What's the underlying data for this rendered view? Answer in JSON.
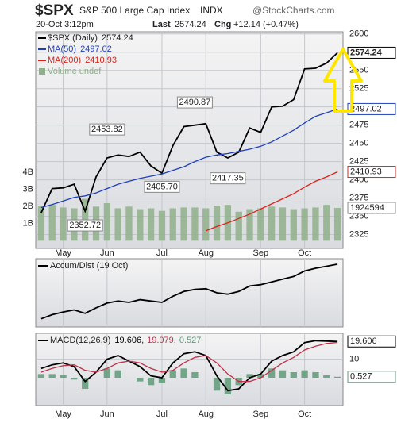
{
  "header": {
    "symbol": "$SPX",
    "name": "S&P 500 Large Cap Index",
    "exchange": "INDX",
    "source": "@StockCharts.com",
    "datetime": "20-Oct 3:12pm",
    "last_label": "Last",
    "last": 2574.24,
    "chg_label": "Chg",
    "chg": "+12.14 (+0.47%)"
  },
  "chart_data": [
    {
      "type": "line",
      "categories": [
        null,
        null,
        "May",
        null,
        null,
        null,
        "Jun",
        null,
        null,
        null,
        null,
        "Jul",
        null,
        null,
        null,
        "Aug",
        null,
        null,
        null,
        null,
        "Sep",
        null,
        null,
        null,
        "Oct",
        null,
        null,
        null
      ],
      "series": [
        {
          "name": "$SPX (Daily)",
          "color": "#000000",
          "tag": true,
          "values": [
            2355,
            2388,
            2389,
            2394,
            2357,
            2404,
            2430,
            2434,
            2432,
            2438,
            2419,
            2409,
            2447,
            2473,
            2475,
            2477,
            2438,
            2430,
            2438,
            2471,
            2465,
            2500,
            2501,
            2510,
            2552,
            2553,
            2560,
            2574.24
          ]
        },
        {
          "name": "MA(50)",
          "color": "#1f3fbf",
          "tag": true,
          "values": [
            2362,
            2366,
            2371,
            2376,
            2378,
            2382,
            2388,
            2394,
            2398,
            2402,
            2405,
            2408,
            2413,
            2418,
            2425,
            2431,
            2434,
            2436,
            2439,
            2442,
            2446,
            2452,
            2460,
            2468,
            2478,
            2487,
            2492,
            2497.02
          ]
        },
        {
          "name": "MA(200)",
          "color": "#e0201b",
          "tag": true,
          "values": [
            null,
            null,
            null,
            null,
            null,
            null,
            null,
            null,
            null,
            null,
            null,
            null,
            null,
            null,
            null,
            2330,
            2336,
            2341,
            2347,
            2353,
            2360,
            2367,
            2374,
            2381,
            2390,
            2398,
            2404,
            2410.93
          ]
        },
        {
          "name": "Volume undef",
          "color": "#8fb08a",
          "kind": "bar",
          "axis": "y2",
          "tag": true,
          "last_label": "1924594",
          "values": [
            2050000000,
            2100000000,
            1950000000,
            1900000000,
            2450000000,
            2000000000,
            2200000000,
            1900000000,
            2000000000,
            1850000000,
            1900000000,
            1750000000,
            1900000000,
            1950000000,
            1950000000,
            1900000000,
            2050000000,
            2100000000,
            1700000000,
            1850000000,
            1900000000,
            2000000000,
            1950000000,
            1850000000,
            1900000000,
            1950000000,
            2100000000,
            1924594000
          ]
        }
      ],
      "ylim": [
        2306,
        2603
      ],
      "yticks": [
        2325,
        2350,
        2375,
        2400,
        2425,
        2450,
        2475,
        2500,
        2525,
        2550,
        2575,
        2600
      ],
      "y2lim": [
        -450000000,
        12250000000
      ],
      "y2ticks": [
        {
          "value": 1000000000,
          "label": "1B"
        },
        {
          "value": 2000000000,
          "label": "2B"
        },
        {
          "value": 3000000000,
          "label": "3B"
        },
        {
          "value": 4000000000,
          "label": "4B"
        }
      ],
      "annotations": [
        {
          "label": "2490.87",
          "value": 2490.87,
          "index": 14
        },
        {
          "label": "2453.82",
          "value": 2453.82,
          "index": 6
        },
        {
          "label": "2405.70",
          "value": 2405.7,
          "index": 11
        },
        {
          "label": "2417.35",
          "value": 2417.35,
          "index": 17
        },
        {
          "label": "2352.72",
          "value": 2352.72,
          "index": 4
        }
      ],
      "grid": true
    },
    {
      "type": "line",
      "title": "Accum/Dist (19 Oct)",
      "series": [
        {
          "color": "#000000",
          "values": [
            12,
            18,
            22,
            25,
            20,
            28,
            35,
            38,
            36,
            40,
            38,
            36,
            45,
            52,
            55,
            56,
            50,
            48,
            52,
            60,
            62,
            66,
            70,
            74,
            82,
            86,
            89,
            92
          ]
        }
      ],
      "ylim": [
        0,
        100
      ],
      "grid": true
    },
    {
      "type": "line",
      "title": "MACD(12,26,9)",
      "series": [
        {
          "color": "#000000",
          "tag": true,
          "values": [
            5,
            7,
            8,
            6,
            -2,
            3,
            10,
            12,
            9,
            6,
            1,
            0,
            8,
            13,
            14,
            12,
            1,
            -7,
            -6,
            0,
            2,
            9,
            12,
            14,
            19,
            20,
            19.8,
            19.606
          ]
        },
        {
          "color": "#c0304a",
          "values": [
            3,
            5,
            6.5,
            7,
            4,
            3,
            5,
            8,
            9,
            8,
            5,
            3,
            4,
            8,
            11,
            12,
            8,
            2,
            -2,
            -2,
            0,
            4,
            8,
            11,
            15,
            17,
            18.5,
            19.079
          ]
        },
        {
          "color": "#5f9a78",
          "kind": "bar",
          "tag": true,
          "values": [
            2,
            2,
            1.5,
            -1,
            -6,
            0,
            5,
            4,
            0,
            -2,
            -4,
            -3,
            4,
            5,
            3,
            0,
            -7,
            -9,
            -4,
            2,
            2,
            5,
            4,
            3,
            4,
            3,
            1.3,
            0.527
          ]
        }
      ],
      "ylim": [
        -15,
        24
      ],
      "yticks": [
        10
      ],
      "grid": true
    }
  ]
}
